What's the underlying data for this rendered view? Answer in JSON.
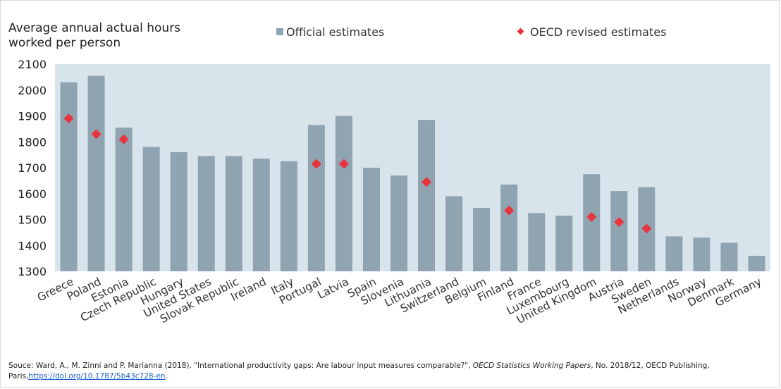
{
  "y_title": "Average annual actual hours worked per person",
  "legend": {
    "official": "Official estimates",
    "oecd": "OECD revised estimates"
  },
  "colors": {
    "plot_bg": "#d7e4ec",
    "bar": "#8fa3b1",
    "marker": "#e8343c"
  },
  "source": {
    "text": "Souce: Ward, A., M. Zinni and P. Marianna (2018), \"International productivity gaps: Are labour input measures comparable?\",",
    "italic": "OECD Statistics Working Papers",
    "text2": ", No. 2018/12, OECD Publishing, Paris,",
    "link": "https://doi.org/10.1787/5b43c728-en",
    "end": "."
  },
  "chart_data": {
    "type": "bar",
    "ylim": [
      1300,
      2100
    ],
    "yticks": [
      1300,
      1400,
      1500,
      1600,
      1700,
      1800,
      1900,
      2000,
      2100
    ],
    "grid": false,
    "legend_position": "top",
    "categories": [
      "Greece",
      "Poland",
      "Estonia",
      "Czech Republic",
      "Hungary",
      "United States",
      "Slovak Republic",
      "Ireland",
      "Italy",
      "Portugal",
      "Latvia",
      "Spain",
      "Slovenia",
      "Lithuania",
      "Switzerland",
      "Belgium",
      "Finland",
      "France",
      "Luxembourg",
      "United Kingdom",
      "Austria",
      "Sweden",
      "Netherlands",
      "Norway",
      "Denmark",
      "Germany"
    ],
    "series": [
      {
        "name": "Official estimates",
        "type": "bar",
        "values": [
          2030,
          2055,
          1855,
          1780,
          1760,
          1745,
          1745,
          1735,
          1725,
          1865,
          1900,
          1700,
          1670,
          1885,
          1590,
          1545,
          1635,
          1525,
          1515,
          1675,
          1610,
          1625,
          1435,
          1430,
          1410,
          1360
        ]
      },
      {
        "name": "OECD revised estimates",
        "type": "scatter",
        "values": [
          1890,
          1830,
          1810,
          null,
          null,
          null,
          null,
          null,
          null,
          1715,
          1715,
          null,
          null,
          1645,
          null,
          null,
          1535,
          null,
          null,
          1510,
          1490,
          1465,
          null,
          null,
          null,
          null
        ]
      }
    ]
  }
}
